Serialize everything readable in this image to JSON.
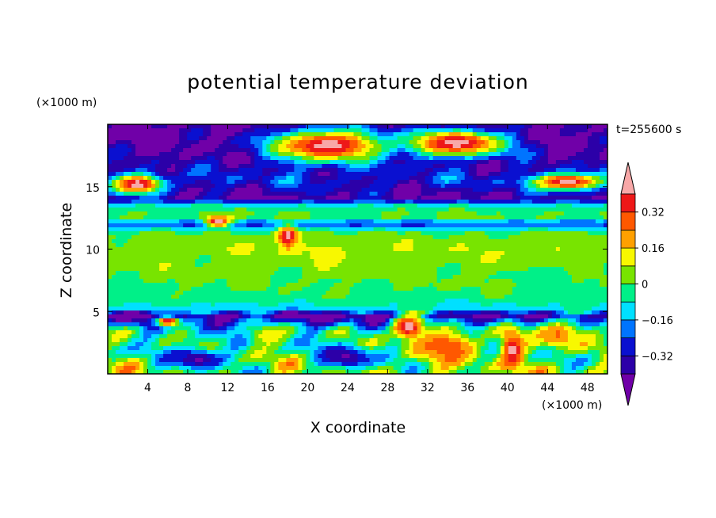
{
  "chart_data": {
    "type": "heatmap",
    "title": "potential temperature deviation",
    "xlabel": "X coordinate",
    "ylabel": "Z coordinate",
    "x_unit": "(×1000 m)",
    "y_unit": "(×1000 m)",
    "time_label": "t=255600 s",
    "xlim": [
      0,
      50
    ],
    "ylim": [
      0,
      20
    ],
    "x_ticks": [
      4,
      8,
      12,
      16,
      20,
      24,
      28,
      32,
      36,
      40,
      44,
      48
    ],
    "y_ticks": [
      5,
      10,
      15
    ],
    "grid": false,
    "colorbar": {
      "placement": "right",
      "levels": [
        -0.4,
        -0.32,
        -0.24,
        -0.16,
        -0.08,
        0,
        0.08,
        0.16,
        0.24,
        0.32,
        0.4
      ],
      "labels": [
        -0.32,
        -0.16,
        0,
        0.16,
        0.32
      ],
      "label_texts": [
        "−0.32",
        "−0.16",
        "0",
        "0.16",
        "0.32"
      ],
      "colors": [
        "#7000a8",
        "#2c00a8",
        "#0a10d0",
        "#0074ff",
        "#00e0ff",
        "#00f088",
        "#78e400",
        "#f8f800",
        "#ffa000",
        "#ff5800",
        "#ee1818",
        "#f8a8a8"
      ],
      "extend": "both"
    },
    "row_profile": [
      {
        "z": 19.7,
        "value": -0.45
      },
      {
        "z": 18.5,
        "value": -0.42
      },
      {
        "z": 17.0,
        "value": -0.38
      },
      {
        "z": 15.5,
        "value": -0.28
      },
      {
        "z": 14.1,
        "value": -0.4
      },
      {
        "z": 13.4,
        "value": -0.05
      },
      {
        "z": 12.6,
        "value": 0.02
      },
      {
        "z": 12.0,
        "value": -0.25
      },
      {
        "z": 11.2,
        "value": 0.02
      },
      {
        "z": 10.0,
        "value": 0.06
      },
      {
        "z": 8.5,
        "value": 0.03
      },
      {
        "z": 7.0,
        "value": 0.0
      },
      {
        "z": 6.0,
        "value": -0.04
      },
      {
        "z": 5.2,
        "value": -0.12
      },
      {
        "z": 4.6,
        "value": -0.42
      },
      {
        "z": 3.5,
        "value": -0.1
      },
      {
        "z": 2.0,
        "value": -0.05
      },
      {
        "z": 0.5,
        "value": 0.02
      }
    ],
    "features": [
      {
        "x": 22,
        "z": 18.3,
        "rx": 7,
        "rz": 1.6,
        "value": 0.45
      },
      {
        "x": 35,
        "z": 18.5,
        "rx": 6,
        "rz": 1.3,
        "value": 0.45
      },
      {
        "x": 3,
        "z": 15.2,
        "rx": 3,
        "rz": 0.9,
        "value": 0.45
      },
      {
        "x": 46,
        "z": 15.4,
        "rx": 4,
        "rz": 0.8,
        "value": 0.45
      },
      {
        "x": 18,
        "z": 11.0,
        "rx": 1.2,
        "rz": 1.0,
        "value": 0.45
      },
      {
        "x": 11,
        "z": 12.2,
        "rx": 1.5,
        "rz": 0.5,
        "value": 0.45
      },
      {
        "x": 34,
        "z": 2.2,
        "rx": 4,
        "rz": 1.6,
        "value": 0.3
      },
      {
        "x": 30,
        "z": 3.8,
        "rx": 2,
        "rz": 1.2,
        "value": 0.45
      },
      {
        "x": 40.5,
        "z": 2.0,
        "rx": 1.3,
        "rz": 1.6,
        "value": 0.45
      },
      {
        "x": 6,
        "z": 4.2,
        "rx": 1.5,
        "rz": 0.5,
        "value": 0.45
      },
      {
        "x": 9,
        "z": 1.2,
        "rx": 3,
        "rz": 1.0,
        "value": -0.42
      },
      {
        "x": 24,
        "z": 1.3,
        "rx": 3,
        "rz": 1.0,
        "value": -0.42
      },
      {
        "x": 16,
        "z": 3.0,
        "rx": 2.5,
        "rz": 1.0,
        "value": 0.12
      },
      {
        "x": 45,
        "z": 3.2,
        "rx": 3,
        "rz": 1.5,
        "value": 0.25
      },
      {
        "x": 22,
        "z": 9.5,
        "rx": 2,
        "rz": 1.2,
        "value": 0.12
      },
      {
        "x": 44,
        "z": 7.8,
        "rx": 3,
        "rz": 1.0,
        "value": -0.08
      }
    ]
  }
}
